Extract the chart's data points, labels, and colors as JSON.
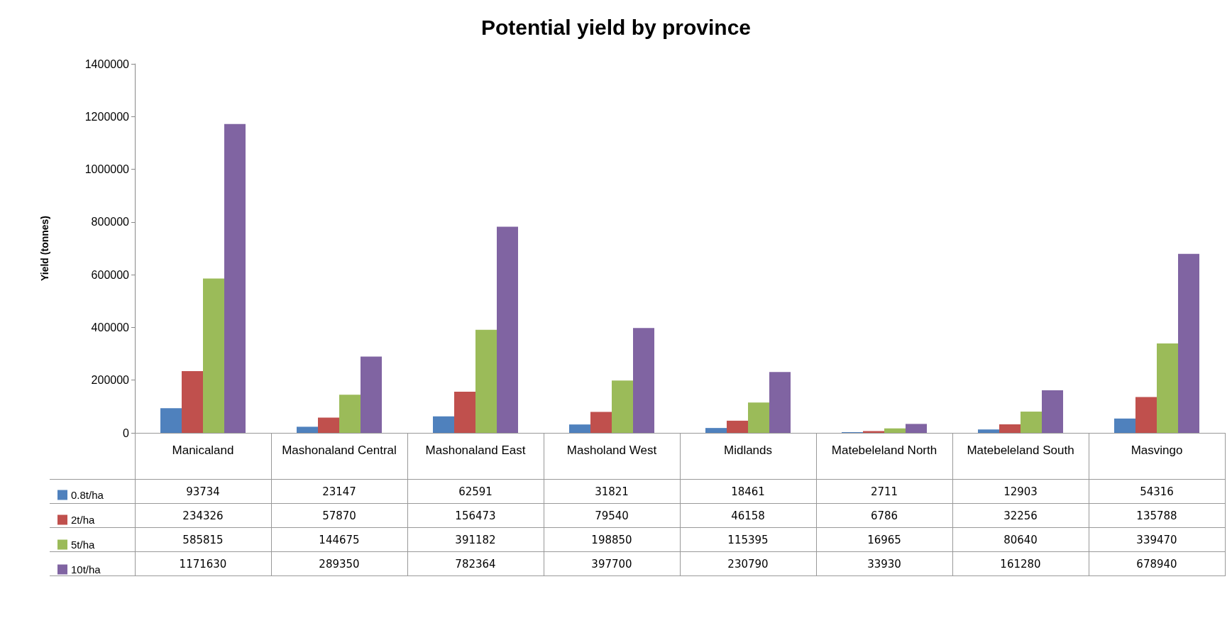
{
  "chart_data": {
    "type": "bar",
    "title": "Potential yield by province",
    "ylabel": "Yield (tonnes)",
    "categories": [
      "Manicaland",
      "Mashonaland Central",
      "Mashonaland East",
      "Masholand West",
      "Midlands",
      "Matebeleland North",
      "Matebeleland South",
      "Masvingo"
    ],
    "series": [
      {
        "name": "0.8t/ha",
        "color": "#4f81bd",
        "values": [
          93734,
          23147,
          62591,
          31821,
          18461,
          2711,
          12903,
          54316
        ]
      },
      {
        "name": "2t/ha",
        "color": "#c0504d",
        "values": [
          234326,
          57870,
          156473,
          79540,
          46158,
          6786,
          32256,
          135788
        ]
      },
      {
        "name": "5t/ha",
        "color": "#9bbb59",
        "values": [
          585815,
          144675,
          391182,
          198850,
          115395,
          16965,
          80640,
          339470
        ]
      },
      {
        "name": "10t/ha",
        "color": "#8064a2",
        "values": [
          1171630,
          289350,
          782364,
          397700,
          230790,
          33930,
          161280,
          678940
        ]
      }
    ],
    "ylim": [
      0,
      1400000
    ],
    "yticks": [
      0,
      200000,
      400000,
      600000,
      800000,
      1000000,
      1200000,
      1400000
    ],
    "grid": false,
    "legend": "bottom left",
    "data_labels": true
  }
}
